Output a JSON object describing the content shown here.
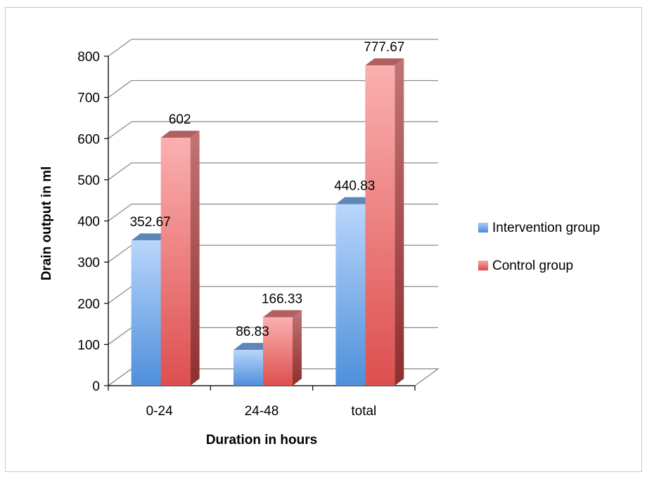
{
  "chart_data": {
    "type": "bar",
    "categories": [
      "0-24",
      "24-48",
      "total"
    ],
    "series": [
      {
        "name": "Intervention group",
        "values": [
          352.67,
          86.83,
          440.83
        ],
        "data_labels": [
          "352.67",
          "86.83",
          "440.83"
        ]
      },
      {
        "name": "Control group",
        "values": [
          602,
          166.33,
          777.67
        ],
        "data_labels": [
          "602",
          "166.33",
          "777.67"
        ]
      }
    ],
    "title": "",
    "xlabel": "Duration in hours",
    "ylabel": "Drain output in ml",
    "ylim": [
      0,
      800
    ],
    "yticks": [
      "0",
      "100",
      "200",
      "300",
      "400",
      "500",
      "600",
      "700",
      "800"
    ],
    "grid": true,
    "legend_position": "right",
    "colors": {
      "Intervention group": "#8cb8ee",
      "Control group": "#ef8686"
    }
  }
}
